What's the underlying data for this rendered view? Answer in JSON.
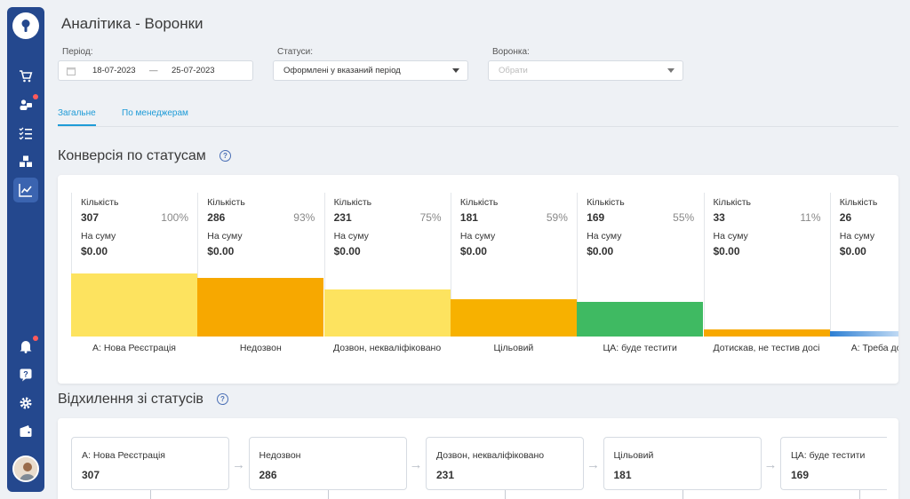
{
  "page": {
    "title": "Аналітика - Воронки"
  },
  "filters": {
    "period": {
      "label": "Період:",
      "from": "18-07-2023",
      "separator": "—",
      "to": "25-07-2023"
    },
    "statuses": {
      "label": "Статуси:",
      "value": "Оформлені у вказаний період"
    },
    "funnel": {
      "label": "Воронка:",
      "placeholder": "Обрати"
    }
  },
  "tabs": [
    {
      "label": "Загальне",
      "active": true
    },
    {
      "label": "По менеджерам",
      "active": false
    }
  ],
  "conversion": {
    "title": "Конверсія по статусам",
    "count_label": "Кількість",
    "sum_label": "На суму",
    "columns": [
      {
        "name": "А: Нова Реєстрація",
        "count": "307",
        "percent": "100%",
        "sum": "$0.00",
        "color": "#fde35f",
        "level": 1.0
      },
      {
        "name": "Недозвон",
        "count": "286",
        "percent": "93%",
        "sum": "$0.00",
        "color": "#f7a800",
        "level": 0.93
      },
      {
        "name": "Дозвон, некваліфіковано",
        "count": "231",
        "percent": "75%",
        "sum": "$0.00",
        "color": "#fde35f",
        "level": 0.75
      },
      {
        "name": "Цільовий",
        "count": "181",
        "percent": "59%",
        "sum": "$0.00",
        "color": "#f7b100",
        "level": 0.59
      },
      {
        "name": "ЦА: буде тестити",
        "count": "169",
        "percent": "55%",
        "sum": "$0.00",
        "color": "#3fba62",
        "level": 0.55
      },
      {
        "name": "Дотискав, не тестив досі",
        "count": "33",
        "percent": "11%",
        "sum": "$0.00",
        "color": "#f7a800",
        "level": 0.11
      },
      {
        "name": "А: Треба дотиснути",
        "count": "26",
        "percent": "",
        "sum": "$0.00",
        "color": "#2d7fd3",
        "level": 0.08
      }
    ]
  },
  "deviation": {
    "title": "Відхилення зі статусів",
    "statuses": [
      {
        "name": "А: Нова Реєстрація",
        "count": "307"
      },
      {
        "name": "Недозвон",
        "count": "286"
      },
      {
        "name": "Дозвон, некваліфіковано",
        "count": "231"
      },
      {
        "name": "Цільовий",
        "count": "181"
      },
      {
        "name": "ЦА: буде тестити",
        "count": "169"
      }
    ]
  },
  "icons": [
    "key-icon",
    "cart-icon",
    "users-icon",
    "checklist-icon",
    "boxes-icon",
    "chart-icon",
    "bell-icon",
    "help-icon",
    "gear-icon",
    "wallet-icon",
    "calendar-icon",
    "question-icon",
    "arrow-right-icon"
  ]
}
